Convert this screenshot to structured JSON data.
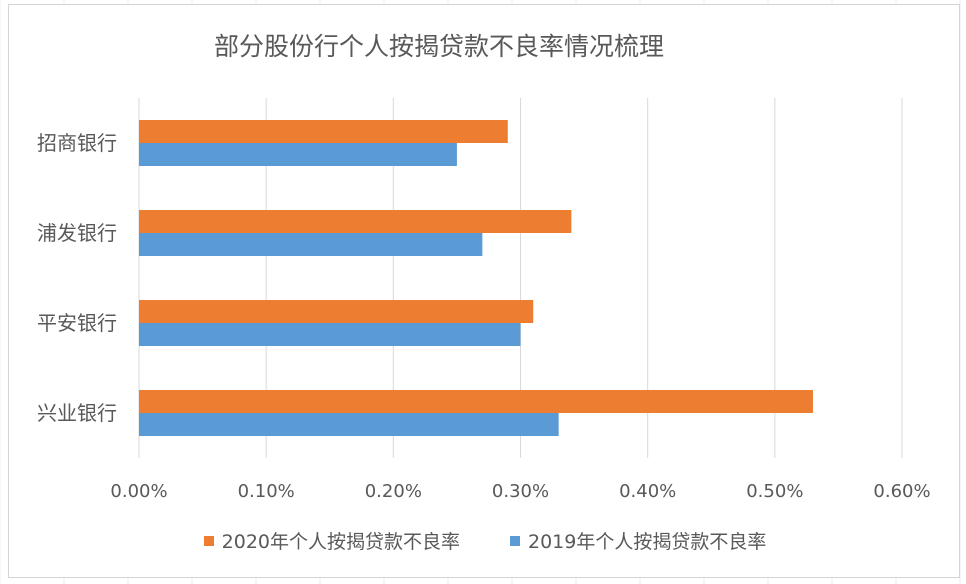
{
  "colors": {
    "series2020": "#ed7d31",
    "series2019": "#5b9bd5",
    "grid": "#d9d9d9",
    "text": "#595959"
  },
  "chart_data": {
    "type": "bar",
    "orientation": "horizontal",
    "title": "部分股份行个人按揭贷款不良率情况梳理",
    "categories": [
      "招商银行",
      "浦发银行",
      "平安银行",
      "兴业银行"
    ],
    "series": [
      {
        "name": "2020年个人按揭贷款不良率",
        "values": [
          0.29,
          0.34,
          0.31,
          0.53
        ]
      },
      {
        "name": "2019年个人按揭贷款不良率",
        "values": [
          0.25,
          0.27,
          0.3,
          0.33
        ]
      }
    ],
    "value_unit": "%",
    "xlim": [
      0,
      0.6
    ],
    "xticks": [
      "0.00%",
      "0.10%",
      "0.20%",
      "0.30%",
      "0.40%",
      "0.50%",
      "0.60%"
    ],
    "grid": true,
    "legend_position": "bottom"
  }
}
